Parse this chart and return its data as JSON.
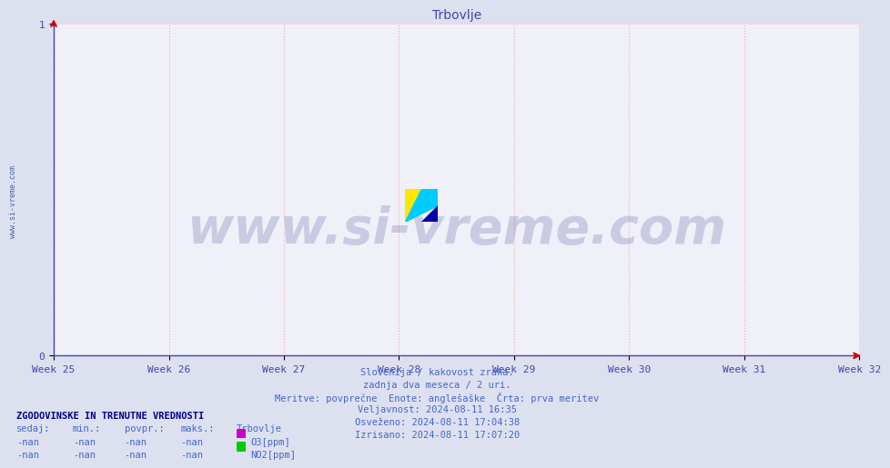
{
  "title": "Trbovlje",
  "title_color": "#4444aa",
  "title_fontsize": 10,
  "figure_bg_color": "#dde0ee",
  "plot_bg_color": "#f0f0f8",
  "xlim": [
    0,
    1
  ],
  "ylim": [
    0,
    1
  ],
  "x_tick_labels": [
    "Week 25",
    "Week 26",
    "Week 27",
    "Week 28",
    "Week 29",
    "Week 30",
    "Week 31",
    "Week 32"
  ],
  "grid_color": "#ffaaaa",
  "grid_style": ":",
  "grid_linewidth": 0.8,
  "spine_color": "#4444aa",
  "arrow_color": "#cc0000",
  "tick_color": "#4444aa",
  "tick_fontsize": 8,
  "watermark_text": "www.si-vreme.com",
  "watermark_color": "#1a237e",
  "watermark_alpha": 0.18,
  "watermark_fontsize": 40,
  "side_text": "www.si-vreme.com",
  "side_text_color": "#4466aa",
  "side_text_fontsize": 6,
  "info_lines": [
    "Slovenija / kakovost zraka.",
    "zadnja dva meseca / 2 uri.",
    "Meritve: povprečne  Enote: anglešaške  Črta: prva meritev",
    "Veljavnost: 2024-08-11 16:35",
    "Osveženo: 2024-08-11 17:04:38",
    "Izrisano: 2024-08-11 17:07:20"
  ],
  "info_color": "#4466cc",
  "info_fontsize": 7.5,
  "legend_title": "ZGODOVINSKE IN TRENUTNE VREDNOSTI",
  "legend_title_color": "#00008B",
  "legend_title_fontsize": 7.5,
  "legend_headers": [
    "sedaj:",
    "min.:",
    "povpr.:",
    "maks.:",
    "Trbovlje"
  ],
  "legend_header_color": "#4466cc",
  "legend_header_fontsize": 7.5,
  "legend_rows": [
    {
      "name": "O3[ppm]",
      "color": "#cc00cc"
    },
    {
      "name": "NO2[ppm]",
      "color": "#00cc00"
    }
  ],
  "legend_text_color": "#4466cc",
  "legend_fontsize": 7.5,
  "logo_yellow": "#FFE800",
  "logo_cyan": "#00CCFF",
  "logo_blue": "#0000AA"
}
